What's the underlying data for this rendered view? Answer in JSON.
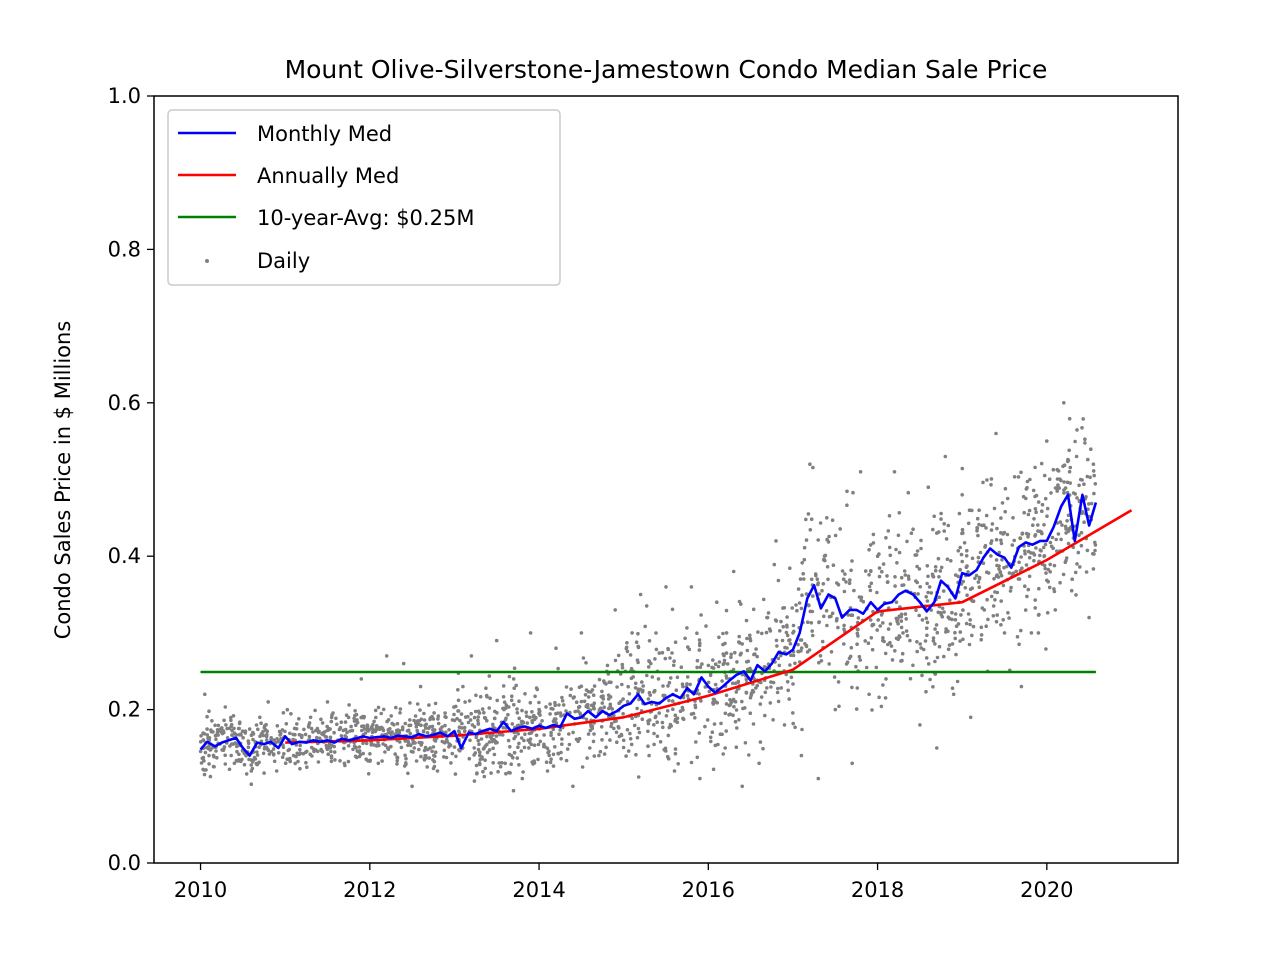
{
  "chart_data": {
    "type": "line",
    "title": "Mount Olive-Silverstone-Jamestown Condo Median Sale Price",
    "xlabel": "",
    "ylabel": "Condo Sales Price in $ Millions",
    "xlim": [
      2009.45,
      2021.55
    ],
    "ylim": [
      0.0,
      1.0
    ],
    "x_ticks": [
      2010,
      2012,
      2014,
      2016,
      2018,
      2020
    ],
    "y_ticks": [
      "0.0",
      "0.2",
      "0.4",
      "0.6",
      "0.8",
      "1.0"
    ],
    "grid": false,
    "legend_position": "top-left",
    "series": [
      {
        "name": "Monthly Med",
        "color": "#0000ff",
        "kind": "line",
        "x": [
          2010.0,
          2010.08,
          2010.17,
          2010.25,
          2010.33,
          2010.42,
          2010.5,
          2010.58,
          2010.67,
          2010.75,
          2010.83,
          2010.92,
          2011.0,
          2011.08,
          2011.17,
          2011.25,
          2011.33,
          2011.42,
          2011.5,
          2011.58,
          2011.67,
          2011.75,
          2011.83,
          2011.92,
          2012.0,
          2012.08,
          2012.17,
          2012.25,
          2012.33,
          2012.42,
          2012.5,
          2012.58,
          2012.67,
          2012.75,
          2012.83,
          2012.92,
          2013.0,
          2013.08,
          2013.17,
          2013.25,
          2013.33,
          2013.42,
          2013.5,
          2013.58,
          2013.67,
          2013.75,
          2013.83,
          2013.92,
          2014.0,
          2014.08,
          2014.17,
          2014.25,
          2014.33,
          2014.42,
          2014.5,
          2014.58,
          2014.67,
          2014.75,
          2014.83,
          2014.92,
          2015.0,
          2015.08,
          2015.17,
          2015.25,
          2015.33,
          2015.42,
          2015.5,
          2015.58,
          2015.67,
          2015.75,
          2015.83,
          2015.92,
          2016.0,
          2016.08,
          2016.17,
          2016.25,
          2016.33,
          2016.42,
          2016.5,
          2016.58,
          2016.67,
          2016.75,
          2016.83,
          2016.92,
          2017.0,
          2017.08,
          2017.17,
          2017.25,
          2017.33,
          2017.42,
          2017.5,
          2017.58,
          2017.67,
          2017.75,
          2017.83,
          2017.92,
          2018.0,
          2018.08,
          2018.17,
          2018.25,
          2018.33,
          2018.42,
          2018.5,
          2018.58,
          2018.67,
          2018.75,
          2018.83,
          2018.92,
          2019.0,
          2019.08,
          2019.17,
          2019.25,
          2019.33,
          2019.42,
          2019.5,
          2019.58,
          2019.67,
          2019.75,
          2019.83,
          2019.92,
          2020.0,
          2020.08,
          2020.17,
          2020.25,
          2020.33,
          2020.42,
          2020.5,
          2020.58
        ],
        "y": [
          0.148,
          0.158,
          0.152,
          0.157,
          0.16,
          0.163,
          0.15,
          0.14,
          0.157,
          0.155,
          0.158,
          0.15,
          0.165,
          0.155,
          0.158,
          0.157,
          0.16,
          0.158,
          0.16,
          0.157,
          0.162,
          0.16,
          0.162,
          0.165,
          0.163,
          0.164,
          0.165,
          0.163,
          0.166,
          0.165,
          0.164,
          0.168,
          0.165,
          0.167,
          0.17,
          0.165,
          0.172,
          0.15,
          0.17,
          0.168,
          0.172,
          0.175,
          0.172,
          0.184,
          0.172,
          0.176,
          0.178,
          0.175,
          0.179,
          0.176,
          0.18,
          0.177,
          0.195,
          0.188,
          0.19,
          0.198,
          0.19,
          0.198,
          0.193,
          0.198,
          0.205,
          0.208,
          0.22,
          0.207,
          0.21,
          0.208,
          0.215,
          0.22,
          0.215,
          0.228,
          0.22,
          0.242,
          0.23,
          0.222,
          0.23,
          0.238,
          0.245,
          0.25,
          0.238,
          0.258,
          0.25,
          0.26,
          0.275,
          0.272,
          0.278,
          0.3,
          0.345,
          0.362,
          0.332,
          0.35,
          0.345,
          0.32,
          0.33,
          0.33,
          0.325,
          0.34,
          0.33,
          0.338,
          0.34,
          0.35,
          0.355,
          0.35,
          0.34,
          0.328,
          0.34,
          0.368,
          0.36,
          0.345,
          0.378,
          0.375,
          0.382,
          0.398,
          0.41,
          0.402,
          0.398,
          0.385,
          0.412,
          0.418,
          0.415,
          0.42,
          0.42,
          0.438,
          0.465,
          0.48,
          0.42,
          0.48,
          0.44,
          0.47
        ]
      },
      {
        "name": "Annually Med",
        "color": "#ff0000",
        "kind": "line",
        "x": [
          2011.0,
          2012.0,
          2013.0,
          2014.0,
          2015.0,
          2016.0,
          2017.0,
          2018.0,
          2019.0,
          2020.0,
          2021.0
        ],
        "y": [
          0.157,
          0.16,
          0.166,
          0.175,
          0.19,
          0.218,
          0.252,
          0.328,
          0.34,
          0.395,
          0.46
        ]
      },
      {
        "name": "10-year-Avg: $0.25M",
        "color": "#008000",
        "kind": "line",
        "x": [
          2010.0,
          2020.58
        ],
        "y": [
          0.249,
          0.249
        ]
      }
    ],
    "daily": {
      "name": "Daily",
      "color": "#808080",
      "note_points": "scatter points",
      "sample": [
        [
          2010.05,
          0.22
        ],
        [
          2010.1,
          0.14
        ],
        [
          2010.2,
          0.17
        ],
        [
          2010.3,
          0.18
        ],
        [
          2010.4,
          0.13
        ],
        [
          2010.6,
          0.12
        ],
        [
          2010.7,
          0.19
        ],
        [
          2010.8,
          0.21
        ],
        [
          2010.9,
          0.12
        ],
        [
          2011.1,
          0.14
        ],
        [
          2011.3,
          0.19
        ],
        [
          2011.5,
          0.21
        ],
        [
          2011.7,
          0.13
        ],
        [
          2011.9,
          0.24
        ],
        [
          2012.1,
          0.13
        ],
        [
          2012.2,
          0.27
        ],
        [
          2012.4,
          0.26
        ],
        [
          2012.5,
          0.1
        ],
        [
          2012.6,
          0.23
        ],
        [
          2012.8,
          0.12
        ],
        [
          2012.9,
          0.19
        ],
        [
          2013.1,
          0.23
        ],
        [
          2013.2,
          0.27
        ],
        [
          2013.3,
          0.14
        ],
        [
          2013.5,
          0.29
        ],
        [
          2013.6,
          0.13
        ],
        [
          2013.7,
          0.24
        ],
        [
          2013.9,
          0.3
        ],
        [
          2014.0,
          0.2
        ],
        [
          2014.1,
          0.12
        ],
        [
          2014.2,
          0.28
        ],
        [
          2014.4,
          0.1
        ],
        [
          2014.5,
          0.3
        ],
        [
          2014.6,
          0.15
        ],
        [
          2014.8,
          0.25
        ],
        [
          2014.9,
          0.33
        ],
        [
          2015.0,
          0.16
        ],
        [
          2015.1,
          0.3
        ],
        [
          2015.2,
          0.35
        ],
        [
          2015.3,
          0.14
        ],
        [
          2015.4,
          0.25
        ],
        [
          2015.5,
          0.36
        ],
        [
          2015.6,
          0.12
        ],
        [
          2015.7,
          0.23
        ],
        [
          2015.8,
          0.36
        ],
        [
          2015.9,
          0.11
        ],
        [
          2016.1,
          0.34
        ],
        [
          2016.2,
          0.15
        ],
        [
          2016.3,
          0.38
        ],
        [
          2016.4,
          0.1
        ],
        [
          2016.5,
          0.29
        ],
        [
          2016.6,
          0.13
        ],
        [
          2016.7,
          0.32
        ],
        [
          2016.8,
          0.42
        ],
        [
          2016.9,
          0.18
        ],
        [
          2017.0,
          0.3
        ],
        [
          2017.1,
          0.14
        ],
        [
          2017.2,
          0.52
        ],
        [
          2017.3,
          0.11
        ],
        [
          2017.4,
          0.45
        ],
        [
          2017.5,
          0.2
        ],
        [
          2017.6,
          0.37
        ],
        [
          2017.7,
          0.13
        ],
        [
          2017.8,
          0.51
        ],
        [
          2017.9,
          0.22
        ],
        [
          2018.0,
          0.4
        ],
        [
          2018.1,
          0.24
        ],
        [
          2018.2,
          0.51
        ],
        [
          2018.3,
          0.3
        ],
        [
          2018.4,
          0.43
        ],
        [
          2018.5,
          0.18
        ],
        [
          2018.6,
          0.49
        ],
        [
          2018.7,
          0.15
        ],
        [
          2018.8,
          0.53
        ],
        [
          2018.9,
          0.22
        ],
        [
          2019.0,
          0.48
        ],
        [
          2019.1,
          0.19
        ],
        [
          2019.2,
          0.46
        ],
        [
          2019.3,
          0.25
        ],
        [
          2019.4,
          0.56
        ],
        [
          2019.5,
          0.3
        ],
        [
          2019.6,
          0.45
        ],
        [
          2019.7,
          0.23
        ],
        [
          2019.8,
          0.5
        ],
        [
          2019.9,
          0.3
        ],
        [
          2020.0,
          0.55
        ],
        [
          2020.1,
          0.33
        ],
        [
          2020.2,
          0.6
        ],
        [
          2020.3,
          0.37
        ],
        [
          2020.4,
          0.5
        ],
        [
          2020.5,
          0.32
        ],
        [
          2020.55,
          0.52
        ]
      ]
    }
  },
  "legend": {
    "monthly": "Monthly Med",
    "annually": "Annually Med",
    "avg": "10-year-Avg: $0.25M",
    "daily": "Daily"
  }
}
